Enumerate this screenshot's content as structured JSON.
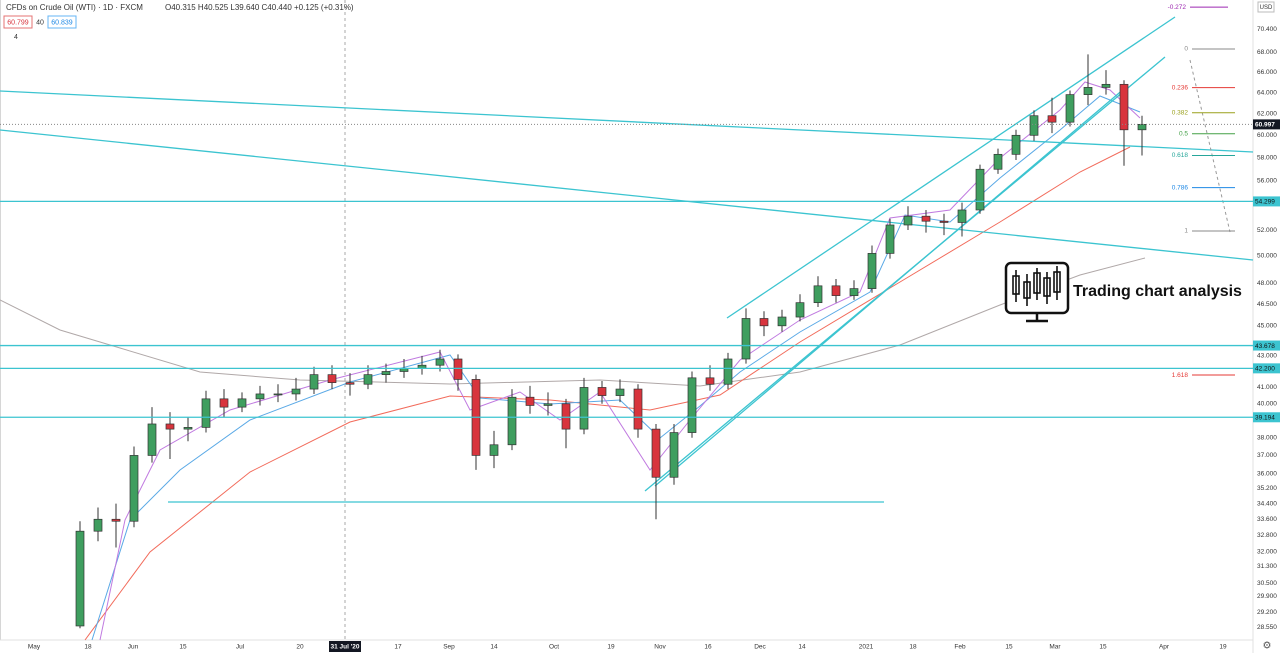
{
  "chart_data": {
    "type": "candlestick",
    "title": "CFDs on Crude Oil (WTI) · 1D · FXCM",
    "quote": "O40.315 H40.525 L39.640 C40.440 +0.125 (+0.31%)",
    "bid": 60.799,
    "spread": 40,
    "ask": 60.839,
    "indicator_count": 4,
    "currency": "USD",
    "annotation": "Trading chart analysis",
    "log_scale": true,
    "grid": false,
    "up_color": "#3f9e5f",
    "down_color": "#d8343d",
    "ylim": [
      28.0,
      73.6
    ],
    "yticks": [
      {
        "value": 70.4,
        "label": "70.400"
      },
      {
        "value": 68,
        "label": "68.000"
      },
      {
        "value": 66,
        "label": "66.000"
      },
      {
        "value": 64,
        "label": "64.000"
      },
      {
        "value": 62,
        "label": "62.000"
      },
      {
        "value": 60,
        "label": "60.000"
      },
      {
        "value": 58,
        "label": "58.000"
      },
      {
        "value": 56,
        "label": "56.000"
      },
      {
        "value": 52,
        "label": "52.000"
      },
      {
        "value": 50,
        "label": "50.000"
      },
      {
        "value": 48,
        "label": "48.000"
      },
      {
        "value": 46.5,
        "label": "46.500"
      },
      {
        "value": 45,
        "label": "45.000"
      },
      {
        "value": 43,
        "label": "43.000"
      },
      {
        "value": 41,
        "label": "41.000"
      },
      {
        "value": 40,
        "label": "40.000"
      },
      {
        "value": 38,
        "label": "38.000"
      },
      {
        "value": 37,
        "label": "37.000"
      },
      {
        "value": 36,
        "label": "36.000"
      },
      {
        "value": 35.2,
        "label": "35.200"
      },
      {
        "value": 34.4,
        "label": "34.400"
      },
      {
        "value": 33.6,
        "label": "33.600"
      },
      {
        "value": 32.8,
        "label": "32.800"
      },
      {
        "value": 32,
        "label": "32.000"
      },
      {
        "value": 31.3,
        "label": "31.300"
      },
      {
        "value": 30.5,
        "label": "30.500"
      },
      {
        "value": 29.9,
        "label": "29.900"
      },
      {
        "value": 29.2,
        "label": "29.200"
      },
      {
        "value": 28.55,
        "label": "28.550"
      }
    ],
    "xlabels": [
      "May",
      "18",
      "Jun",
      "15",
      "Jul",
      "20",
      "31 Jul '20",
      "17",
      "Sep",
      "14",
      "Oct",
      "19",
      "Nov",
      "16",
      "Dec",
      "14",
      "2021",
      "18",
      "Feb",
      "15",
      "Mar",
      "15",
      "Apr",
      "19"
    ],
    "last_price": 60.997,
    "levels": [
      54.299,
      43.678,
      {
        "value": 42.2,
        "label": "42.200"
      },
      39.194
    ],
    "level_color": "#3cc4d0",
    "fib_levels": [
      {
        "value": -0.272,
        "color": "#9c27b0"
      },
      {
        "value": 0,
        "color": "#888888"
      },
      {
        "value": 0.236,
        "color": "#e53935"
      },
      {
        "value": 0.382,
        "color": "#9aa01c"
      },
      {
        "value": 0.5,
        "color": "#43a047"
      },
      {
        "value": 0.618,
        "color": "#26a69a"
      },
      {
        "value": 0.786,
        "color": "#1e88e5"
      },
      {
        "value": 1,
        "color": "#888888"
      },
      {
        "value": 1.618,
        "color": "#e53935"
      }
    ],
    "ohlc": [
      [
        28.6,
        33.5,
        28.5,
        33
      ],
      [
        33,
        34.2,
        32.5,
        33.6
      ],
      [
        33.6,
        34.4,
        32.2,
        33.5
      ],
      [
        33.5,
        37.5,
        33.2,
        37
      ],
      [
        37,
        39.8,
        36.6,
        38.8
      ],
      [
        38.8,
        39.5,
        36.8,
        38.5
      ],
      [
        38.5,
        39.2,
        37.8,
        38.6
      ],
      [
        38.6,
        40.8,
        38.3,
        40.3
      ],
      [
        40.3,
        40.9,
        39.2,
        39.8
      ],
      [
        39.8,
        40.7,
        39.5,
        40.3
      ],
      [
        40.3,
        41.1,
        39.9,
        40.6
      ],
      [
        40.6,
        41.2,
        40.1,
        40.6
      ],
      [
        40.6,
        41.6,
        40.2,
        40.9
      ],
      [
        40.9,
        42.3,
        40.6,
        41.8
      ],
      [
        41.8,
        42.4,
        40.9,
        41.3
      ],
      [
        41.3,
        41.9,
        40.5,
        41.2
      ],
      [
        41.2,
        42.4,
        40.9,
        41.8
      ],
      [
        41.8,
        42.5,
        41.3,
        42
      ],
      [
        42,
        42.8,
        41.6,
        42.2
      ],
      [
        42.2,
        43,
        41.8,
        42.4
      ],
      [
        42.4,
        43.4,
        42,
        42.8
      ],
      [
        42.8,
        43.1,
        40.8,
        41.5
      ],
      [
        41.5,
        41.8,
        36.2,
        37
      ],
      [
        37,
        38.4,
        36.3,
        37.6
      ],
      [
        37.6,
        40.9,
        37.3,
        40.4
      ],
      [
        40.4,
        41.1,
        39.4,
        39.9
      ],
      [
        39.9,
        40.7,
        39.3,
        40
      ],
      [
        40,
        40.3,
        37.4,
        38.5
      ],
      [
        38.5,
        41.6,
        38.2,
        41
      ],
      [
        41,
        41.4,
        40,
        40.5
      ],
      [
        40.5,
        41.5,
        40.1,
        40.9
      ],
      [
        40.9,
        41.2,
        38,
        38.5
      ],
      [
        38.5,
        38.8,
        33.6,
        35.8
      ],
      [
        35.8,
        38.8,
        35.4,
        38.3
      ],
      [
        38.3,
        42,
        38,
        41.6
      ],
      [
        41.6,
        42.4,
        40.8,
        41.2
      ],
      [
        41.2,
        43.2,
        40.9,
        42.8
      ],
      [
        42.8,
        46.2,
        42.5,
        45.5
      ],
      [
        45.5,
        46,
        44.3,
        45
      ],
      [
        45,
        46.1,
        44.6,
        45.6
      ],
      [
        45.6,
        47.2,
        45.3,
        46.6
      ],
      [
        46.6,
        48.5,
        46.3,
        47.8
      ],
      [
        47.8,
        48.3,
        46.6,
        47.1
      ],
      [
        47.1,
        48.2,
        46.8,
        47.6
      ],
      [
        47.6,
        50.8,
        47.3,
        50.2
      ],
      [
        50.2,
        52.9,
        49.8,
        52.4
      ],
      [
        52.4,
        53.9,
        52,
        53.1
      ],
      [
        53.1,
        53.6,
        51.8,
        52.7
      ],
      [
        52.7,
        53.3,
        51.6,
        52.6
      ],
      [
        52.6,
        54.2,
        51.5,
        53.6
      ],
      [
        53.6,
        57.4,
        53.3,
        57
      ],
      [
        57,
        58.8,
        56.6,
        58.3
      ],
      [
        58.3,
        60.5,
        57.8,
        60
      ],
      [
        60,
        62.3,
        59.5,
        61.8
      ],
      [
        61.8,
        63.5,
        60.2,
        61.2
      ],
      [
        61.2,
        64.2,
        60.8,
        63.8
      ],
      [
        63.8,
        67.8,
        62.8,
        64.5
      ],
      [
        64.5,
        66.2,
        63.8,
        64.8
      ],
      [
        64.8,
        65.2,
        57.3,
        60.5
      ],
      [
        60.5,
        61.8,
        58.2,
        61
      ]
    ]
  }
}
